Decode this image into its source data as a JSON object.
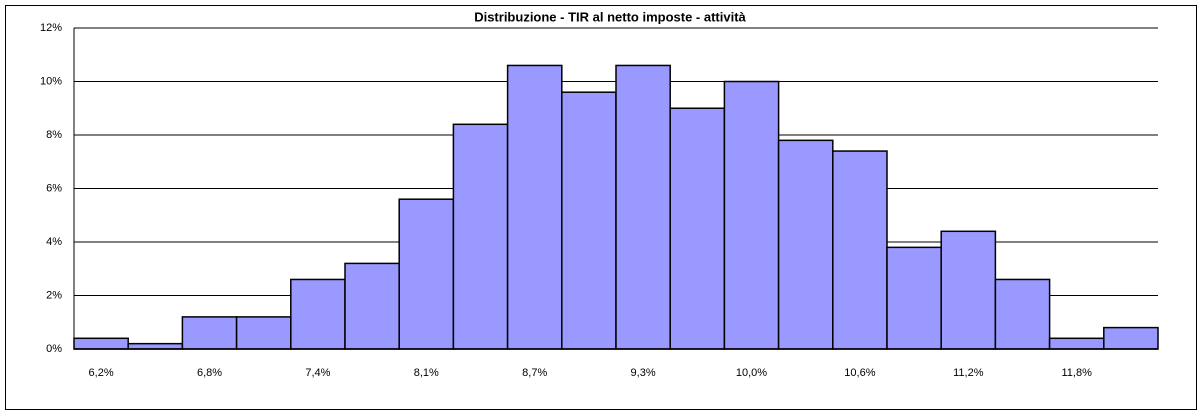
{
  "chart_data": {
    "type": "bar",
    "title": "Distribuzione - TIR al netto imposte - attività",
    "categories": [
      "6,2%",
      null,
      "6,8%",
      null,
      "7,4%",
      null,
      "8,1%",
      null,
      "8,7%",
      null,
      "9,3%",
      null,
      "10,0%",
      null,
      "10,6%",
      null,
      "11,2%",
      null,
      "11,8%",
      null
    ],
    "values": [
      0.4,
      0.2,
      1.2,
      1.2,
      2.6,
      3.2,
      5.6,
      8.4,
      10.6,
      9.6,
      10.6,
      9.0,
      10.0,
      7.8,
      7.4,
      3.8,
      4.4,
      2.6,
      0.4,
      0.8
    ],
    "color": "#9999ff",
    "ylim": [
      0,
      12
    ],
    "yticks": [
      {
        "value": 0,
        "label": "0%"
      },
      {
        "value": 2,
        "label": "2%"
      },
      {
        "value": 4,
        "label": "4%"
      },
      {
        "value": 6,
        "label": "6%"
      },
      {
        "value": 8,
        "label": "8%"
      },
      {
        "value": 10,
        "label": "10%"
      },
      {
        "value": 12,
        "label": "12%"
      }
    ],
    "grid": true
  }
}
